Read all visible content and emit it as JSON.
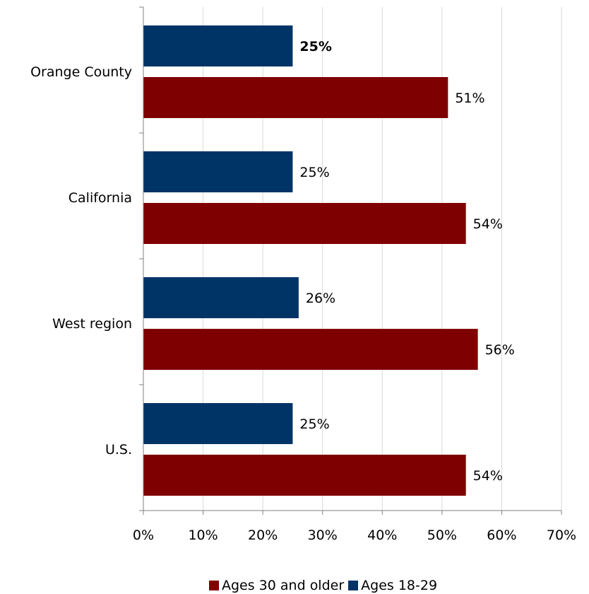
{
  "colors": {
    "ages_30_older": "#7f0000",
    "ages_18_29": "#003366",
    "grid": "#d9d9d9",
    "axis": "#000000"
  },
  "legend": {
    "items": [
      {
        "label": "Ages 30 and older"
      },
      {
        "label": "Ages 18-29"
      }
    ]
  },
  "chart_data": {
    "type": "bar",
    "orientation": "horizontal",
    "categories": [
      "Orange County",
      "California",
      "West region",
      "U.S."
    ],
    "series": [
      {
        "name": "Ages 18-29",
        "values": [
          25,
          25,
          26,
          25
        ],
        "labels": [
          "25%",
          "25%",
          "26%",
          "25%"
        ]
      },
      {
        "name": "Ages 30 and older",
        "values": [
          51,
          54,
          56,
          54
        ],
        "labels": [
          "51%",
          "54%",
          "56%",
          "54%"
        ]
      }
    ],
    "bold_labels": [
      "Ages 18-29:Orange County"
    ],
    "xlim": [
      0,
      70
    ],
    "xticks": [
      0,
      10,
      20,
      30,
      40,
      50,
      60,
      70
    ],
    "xtick_labels": [
      "0%",
      "10%",
      "20%",
      "30%",
      "40%",
      "50%",
      "60%",
      "70%"
    ],
    "grid": "vertical",
    "legend_position": "bottom",
    "title": "",
    "xlabel": "",
    "ylabel": ""
  }
}
